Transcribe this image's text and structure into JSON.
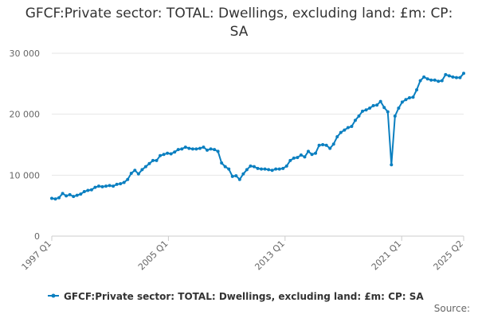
{
  "chart_data": {
    "type": "line",
    "title": "GFCF:Private sector: TOTAL: Dwellings, excluding land: £m: CP: SA",
    "xlabel": "",
    "ylabel": "",
    "ylim": [
      0,
      30000
    ],
    "yticks": [
      0,
      10000,
      20000,
      30000
    ],
    "ytick_labels": [
      "0",
      "10 000",
      "20 000",
      "30 000"
    ],
    "xticks": [
      "1997 Q1",
      "2005 Q1",
      "2013 Q1",
      "2021 Q1",
      "2025 Q2"
    ],
    "grid": "horizontal",
    "legend": "bottom-center",
    "series_color": "#0a7fc0",
    "x_start": "1997 Q1",
    "x_end": "2025 Q2",
    "series": [
      {
        "name": "GFCF:Private sector: TOTAL: Dwellings, excluding land: £m: CP: SA",
        "values": [
          6200,
          6100,
          6300,
          7000,
          6600,
          6800,
          6500,
          6700,
          6900,
          7300,
          7500,
          7600,
          8000,
          8200,
          8100,
          8200,
          8300,
          8200,
          8500,
          8600,
          8800,
          9300,
          10300,
          10800,
          10200,
          10900,
          11400,
          11900,
          12400,
          12400,
          13200,
          13400,
          13600,
          13500,
          13800,
          14200,
          14300,
          14600,
          14400,
          14300,
          14300,
          14400,
          14600,
          14100,
          14300,
          14200,
          13900,
          12000,
          11400,
          11000,
          9800,
          9900,
          9300,
          10200,
          10900,
          11500,
          11400,
          11100,
          11000,
          11000,
          10900,
          10800,
          11000,
          11000,
          11100,
          11500,
          12400,
          12800,
          12900,
          13300,
          13000,
          13900,
          13400,
          13600,
          14900,
          15000,
          14900,
          14400,
          15100,
          16300,
          17000,
          17400,
          17800,
          18000,
          19000,
          19700,
          20500,
          20700,
          21000,
          21400,
          21500,
          22100,
          21100,
          20400,
          11700,
          19700,
          21000,
          22000,
          22400,
          22700,
          22800,
          24000,
          25500,
          26100,
          25800,
          25600,
          25600,
          25400,
          25500,
          26500,
          26300,
          26100,
          26000,
          26000,
          26700
        ]
      }
    ],
    "legend_label": "GFCF:Private sector: TOTAL: Dwellings, excluding land: £m: CP: SA",
    "source_label": "Source:"
  }
}
